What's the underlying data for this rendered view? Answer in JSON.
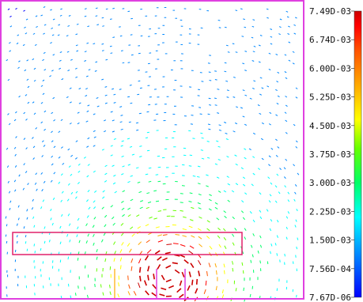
{
  "chart_data": {
    "type": "vector-field",
    "colorbar": {
      "tick_labels": [
        "7.49D-03",
        "6.74D-03",
        "6.00D-03",
        "5.25D-03",
        "4.50D-03",
        "3.75D-03",
        "3.00D-03",
        "2.25D-03",
        "1.50D-03",
        "7.56D-04",
        "7.67D-06"
      ],
      "min": 7.67e-06,
      "max": 0.00749,
      "colors_low_to_high": [
        "#0000ff",
        "#0088ff",
        "#00ffff",
        "#00ff66",
        "#66ff00",
        "#ffff00",
        "#ffaa00",
        "#ff5500",
        "#ff0000",
        "#cc0000"
      ]
    },
    "field": {
      "description_source": "arrow magnitude increases toward the lower-center region",
      "peak_location": "bottom-center"
    },
    "grid": false,
    "legend": "colorbar-right"
  },
  "colors": {
    "frame": "#e040e0",
    "conductor_outline": "#e0206a",
    "background": "#ffffff"
  }
}
